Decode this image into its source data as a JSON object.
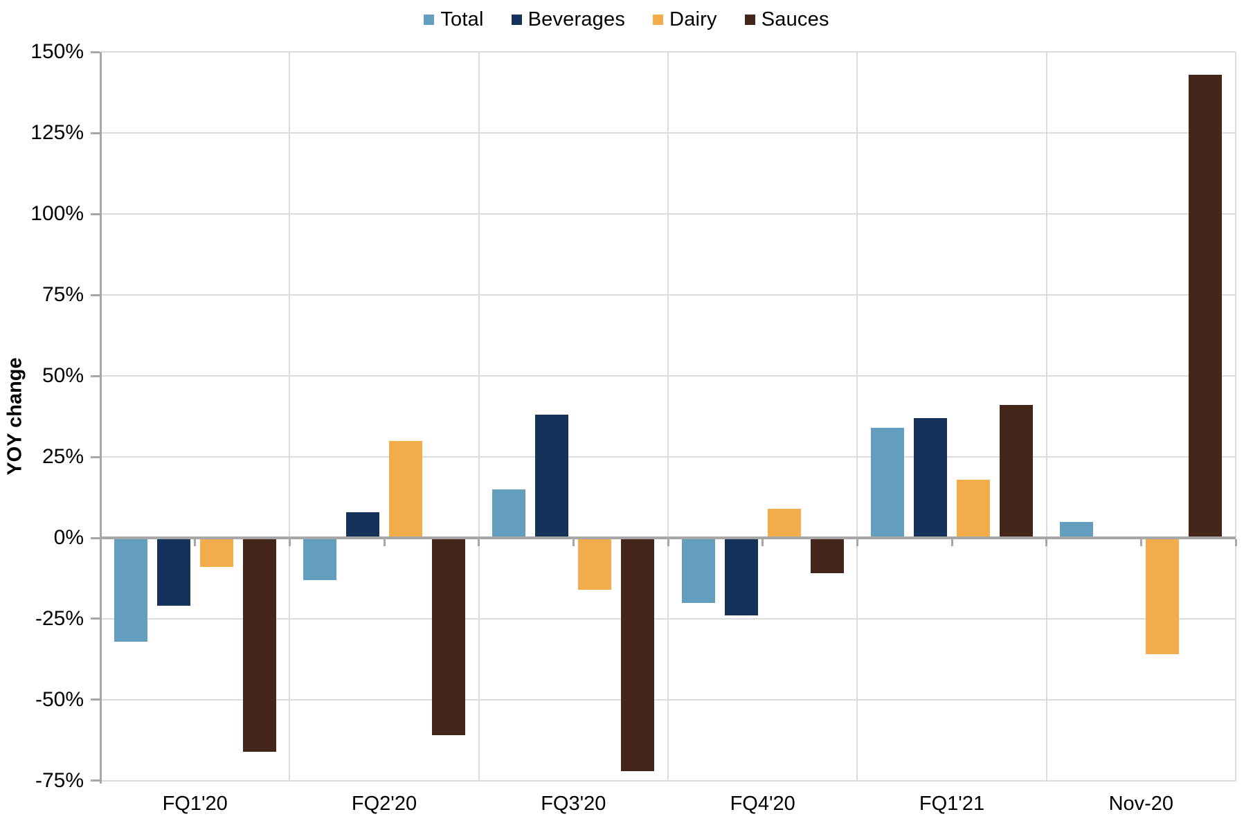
{
  "chart_data": {
    "type": "bar",
    "title": "",
    "xlabel": "",
    "ylabel": "YOY change",
    "categories": [
      "FQ1'20",
      "FQ2'20",
      "FQ3'20",
      "FQ4'20",
      "FQ1'21",
      "Nov-20"
    ],
    "series": [
      {
        "name": "Total",
        "color": "#649EBF",
        "values": [
          -32,
          -13,
          15,
          -20,
          34,
          5
        ]
      },
      {
        "name": "Beverages",
        "color": "#15325B",
        "values": [
          -21,
          8,
          38,
          -24,
          37,
          0
        ]
      },
      {
        "name": "Dairy",
        "color": "#F2AC4C",
        "values": [
          -9,
          30,
          -16,
          9,
          18,
          -36
        ]
      },
      {
        "name": "Sauces",
        "color": "#45261B",
        "values": [
          -66,
          -61,
          -72,
          -11,
          41,
          143
        ]
      }
    ],
    "ylim": [
      -75,
      150
    ],
    "ytick_step": 25,
    "ytick_suffix": "%",
    "grid": "on",
    "legend_position": "top-center",
    "colors": {
      "gridline": "#dcdcdc",
      "axis": "#a7a7a7",
      "text": "#000000"
    }
  }
}
